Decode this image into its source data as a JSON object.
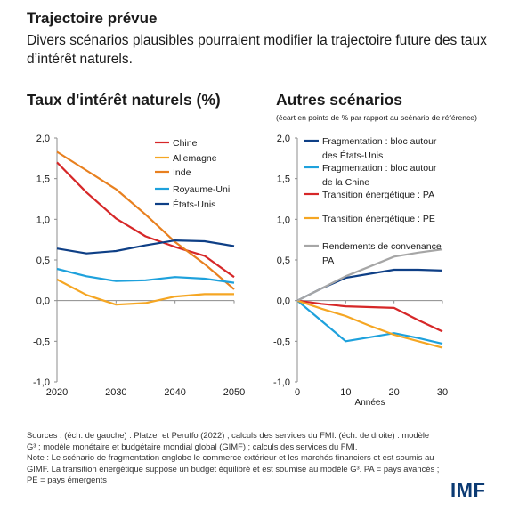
{
  "header": {
    "title": "Trajectoire prévue",
    "subtitle": "Divers scénarios plausibles pourraient modifier la trajectoire future des taux d’intérêt naturels."
  },
  "left_panel": {
    "title": "Taux d'intérêt naturels (%)"
  },
  "right_panel": {
    "title": "Autres scénarios",
    "note": "(écart en points de % par rapport au scénario de référence)"
  },
  "footer": {
    "sources": "Sources : (éch. de gauche) : Platzer et Peruffo (2022) ; calculs des services du FMI. (éch. de droite) : modèle G³ ; modèle monétaire et budgétaire mondial global (GIMF) ; calculs des services du FMI.",
    "note": "Note : Le scénario de fragmentation englobe le commerce extérieur et les marchés financiers et est soumis au GIMF. La transition énergétique suppose un budget équilibré et est soumise au modèle G³. PA = pays avancés ; PE = pays émergents"
  },
  "logo": "IMF",
  "chart_data": [
    {
      "type": "line",
      "title": "Taux d'intérêt naturels (%)",
      "x": [
        2020,
        2025,
        2030,
        2035,
        2040,
        2045,
        2050
      ],
      "xticks": [
        "2020",
        "2030",
        "2040",
        "2050"
      ],
      "yticks": [
        "2,0",
        "1,5",
        "1,0",
        "0,5",
        "0,0",
        "-0,5",
        "-1,0"
      ],
      "ylim": [
        -1.0,
        2.0
      ],
      "xlim": [
        2020,
        2050
      ],
      "grid": false,
      "legend": "top-right",
      "series": [
        {
          "name": "Chine",
          "color": "#d62728",
          "values": [
            1.7,
            1.33,
            1.01,
            0.79,
            0.66,
            0.55,
            0.29
          ]
        },
        {
          "name": "Allemagne",
          "color": "#f5a623",
          "values": [
            0.26,
            0.07,
            -0.05,
            -0.03,
            0.05,
            0.08,
            0.08
          ]
        },
        {
          "name": "Inde",
          "color": "#e8801f",
          "values": [
            1.83,
            1.6,
            1.37,
            1.06,
            0.72,
            0.45,
            0.14
          ]
        },
        {
          "name": "Royaume-Uni",
          "color": "#1ea1dc",
          "values": [
            0.39,
            0.3,
            0.24,
            0.25,
            0.29,
            0.27,
            0.22
          ]
        },
        {
          "name": "États-Unis",
          "color": "#0e3f86",
          "values": [
            0.64,
            0.58,
            0.61,
            0.68,
            0.74,
            0.73,
            0.67
          ]
        }
      ]
    },
    {
      "type": "line",
      "title": "Autres scénarios",
      "xlabel": "Années",
      "x": [
        0,
        10,
        20,
        30
      ],
      "xticks": [
        "0",
        "10",
        "20",
        "30"
      ],
      "yticks": [
        "2,0",
        "1,5",
        "1,0",
        "0,5",
        "0,0",
        "-0,5",
        "-1,0"
      ],
      "ylim": [
        -1.0,
        2.0
      ],
      "xlim": [
        0,
        30
      ],
      "grid": false,
      "legend": "top-right",
      "series": [
        {
          "name": "Fragmentation : bloc autour des États-Unis",
          "color": "#0e3f86",
          "x": [
            0,
            5,
            10,
            15,
            20,
            25,
            30
          ],
          "values": [
            0.0,
            0.15,
            0.28,
            0.33,
            0.38,
            0.38,
            0.37
          ]
        },
        {
          "name": "Fragmentation : bloc autour de la Chine",
          "color": "#1ea1dc",
          "x": [
            0,
            5,
            10,
            15,
            20,
            25,
            30
          ],
          "values": [
            0.0,
            -0.25,
            -0.5,
            -0.45,
            -0.4,
            -0.46,
            -0.53
          ]
        },
        {
          "name": "Transition énergétique : PA",
          "color": "#d62728",
          "x": [
            0,
            5,
            10,
            15,
            20,
            25,
            30
          ],
          "values": [
            0.0,
            -0.04,
            -0.07,
            -0.08,
            -0.09,
            -0.24,
            -0.38
          ]
        },
        {
          "name": "Transition énergétique : PE",
          "color": "#f5a623",
          "x": [
            0,
            5,
            10,
            15,
            20,
            25,
            30
          ],
          "values": [
            0.0,
            -0.1,
            -0.19,
            -0.31,
            -0.42,
            -0.5,
            -0.58
          ]
        },
        {
          "name": "Rendements de convenance PA",
          "color": "#a6a6a6",
          "x": [
            0,
            5,
            10,
            15,
            20,
            25,
            30
          ],
          "values": [
            0.0,
            0.15,
            0.3,
            0.42,
            0.54,
            0.59,
            0.63
          ]
        }
      ]
    }
  ]
}
